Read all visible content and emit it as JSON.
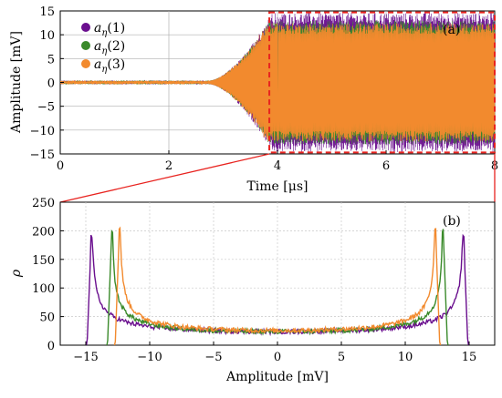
{
  "chart_data": [
    {
      "type": "line",
      "panel_label": "(a)",
      "xlabel": "Time [μs]",
      "ylabel": "Amplitude [mV]",
      "xlim": [
        0,
        8
      ],
      "ylim": [
        -15,
        15
      ],
      "xticks": [
        0,
        2,
        4,
        6,
        8
      ],
      "yticks": [
        -15,
        -10,
        -5,
        0,
        5,
        10,
        15
      ],
      "grid": true,
      "legend_position": "top-left",
      "zoom_window": {
        "x": [
          3.85,
          8
        ],
        "y": [
          -14.7,
          14.7
        ],
        "color": "#e8231f"
      },
      "series": [
        {
          "name": "aη(1)",
          "color": "#6a0f8e",
          "onset_time": 2.75,
          "saturation_time": 3.9,
          "saturated_amplitude": 14.6,
          "initial_noise": 0.4
        },
        {
          "name": "aη(2)",
          "color": "#3a8a2a",
          "onset_time": 2.75,
          "saturation_time": 3.85,
          "saturated_amplitude": 13.0,
          "initial_noise": 0.4
        },
        {
          "name": "aη(3)",
          "color": "#f28a2e",
          "onset_time": 2.75,
          "saturation_time": 3.8,
          "saturated_amplitude": 12.4,
          "initial_noise": 0.4
        }
      ]
    },
    {
      "type": "line",
      "panel_label": "(b)",
      "xlabel": "Amplitude [mV]",
      "ylabel": "ρ",
      "xlim": [
        -17,
        17
      ],
      "ylim": [
        0,
        250
      ],
      "xticks": [
        -15,
        -10,
        -5,
        0,
        5,
        10,
        15
      ],
      "yticks": [
        0,
        50,
        100,
        150,
        200,
        250
      ],
      "grid": true,
      "series": [
        {
          "name": "aη(1)",
          "color": "#6a0f8e",
          "edge": 14.6,
          "peak_value": 190,
          "floor_value": 25
        },
        {
          "name": "aη(2)",
          "color": "#3a8a2a",
          "edge": 13.0,
          "peak_value": 202,
          "floor_value": 25
        },
        {
          "name": "aη(3)",
          "color": "#f28a2e",
          "edge": 12.4,
          "peak_value": 205,
          "floor_value": 27
        }
      ]
    }
  ],
  "legend": {
    "items": [
      {
        "symbol": "a",
        "sub": "η",
        "arg": "(1)"
      },
      {
        "symbol": "a",
        "sub": "η",
        "arg": "(2)"
      },
      {
        "symbol": "a",
        "sub": "η",
        "arg": "(3)"
      }
    ]
  }
}
